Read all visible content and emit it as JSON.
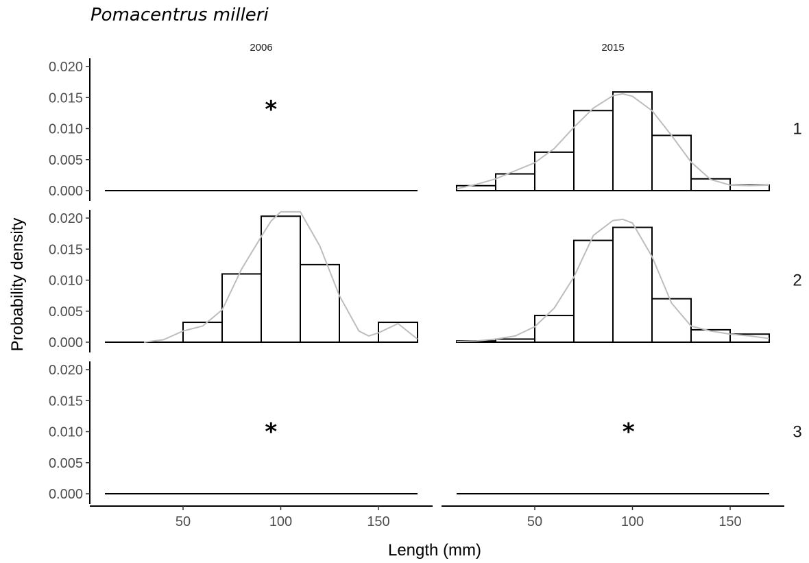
{
  "chart_data": {
    "type": "histogram",
    "title": "Pomacentrus milleri",
    "xlabel": "Length (mm)",
    "ylabel": "Probability density",
    "columns": [
      "2006",
      "2015"
    ],
    "rows": [
      "1",
      "2",
      "3"
    ],
    "xlim": [
      10,
      170
    ],
    "ylim": [
      0,
      0.021
    ],
    "x_ticks": [
      50,
      100,
      150
    ],
    "y_ticks": [
      0.0,
      0.005,
      0.01,
      0.015,
      0.02
    ],
    "y_tick_labels": [
      "0.000",
      "0.005",
      "0.010",
      "0.015",
      "0.020"
    ],
    "bin_edges": [
      10,
      30,
      50,
      70,
      90,
      110,
      130,
      150,
      170
    ],
    "grid": false,
    "density_color": "#bdbdbd",
    "bar_fill": "#ffffff",
    "bar_stroke": "#000000",
    "panels": [
      {
        "column": "2006",
        "row": "1",
        "missing_marker": "*",
        "star_x": 95,
        "star_y": 0.0138,
        "density": [],
        "hist": []
      },
      {
        "column": "2015",
        "row": "1",
        "hist": [
          0.0008,
          0.0027,
          0.0062,
          0.0129,
          0.0159,
          0.0089,
          0.0019,
          0.0009
        ],
        "density": [
          [
            10,
            0.0003
          ],
          [
            20,
            0.001
          ],
          [
            30,
            0.0019
          ],
          [
            40,
            0.0032
          ],
          [
            50,
            0.0045
          ],
          [
            60,
            0.0068
          ],
          [
            70,
            0.0102
          ],
          [
            80,
            0.0133
          ],
          [
            90,
            0.0153
          ],
          [
            95,
            0.0156
          ],
          [
            100,
            0.0152
          ],
          [
            110,
            0.0129
          ],
          [
            120,
            0.0089
          ],
          [
            130,
            0.0046
          ],
          [
            140,
            0.0018
          ],
          [
            150,
            0.0009
          ],
          [
            160,
            0.0008
          ],
          [
            170,
            0.0009
          ]
        ]
      },
      {
        "column": "2006",
        "row": "2",
        "hist": [
          0,
          0,
          0.0032,
          0.011,
          0.0203,
          0.0125,
          0,
          0.0032
        ],
        "density": [
          [
            30,
            0
          ],
          [
            40,
            0.0004
          ],
          [
            50,
            0.0018
          ],
          [
            60,
            0.0026
          ],
          [
            70,
            0.0052
          ],
          [
            80,
            0.0118
          ],
          [
            90,
            0.017
          ],
          [
            95,
            0.0195
          ],
          [
            100,
            0.021
          ],
          [
            110,
            0.021
          ],
          [
            120,
            0.0155
          ],
          [
            130,
            0.0075
          ],
          [
            140,
            0.0018
          ],
          [
            145,
            0.001
          ],
          [
            150,
            0.0015
          ],
          [
            160,
            0.003
          ],
          [
            170,
            0.0005
          ]
        ]
      },
      {
        "column": "2015",
        "row": "2",
        "hist": [
          0.0002,
          0.0005,
          0.0043,
          0.0164,
          0.0185,
          0.007,
          0.002,
          0.0013
        ],
        "density": [
          [
            10,
            0.0001
          ],
          [
            20,
            0.0002
          ],
          [
            30,
            0.0005
          ],
          [
            40,
            0.001
          ],
          [
            50,
            0.0025
          ],
          [
            60,
            0.0055
          ],
          [
            70,
            0.0105
          ],
          [
            80,
            0.0172
          ],
          [
            90,
            0.0196
          ],
          [
            95,
            0.0198
          ],
          [
            100,
            0.0192
          ],
          [
            110,
            0.0138
          ],
          [
            120,
            0.0063
          ],
          [
            130,
            0.0026
          ],
          [
            140,
            0.0018
          ],
          [
            150,
            0.0013
          ],
          [
            160,
            0.001
          ],
          [
            170,
            0.0006
          ]
        ]
      },
      {
        "column": "2006",
        "row": "3",
        "missing_marker": "*",
        "star_x": 95,
        "star_y": 0.0107,
        "density": [],
        "hist": []
      },
      {
        "column": "2015",
        "row": "3",
        "missing_marker": "*",
        "star_x": 98,
        "star_y": 0.0107,
        "density": [],
        "hist": []
      }
    ]
  }
}
